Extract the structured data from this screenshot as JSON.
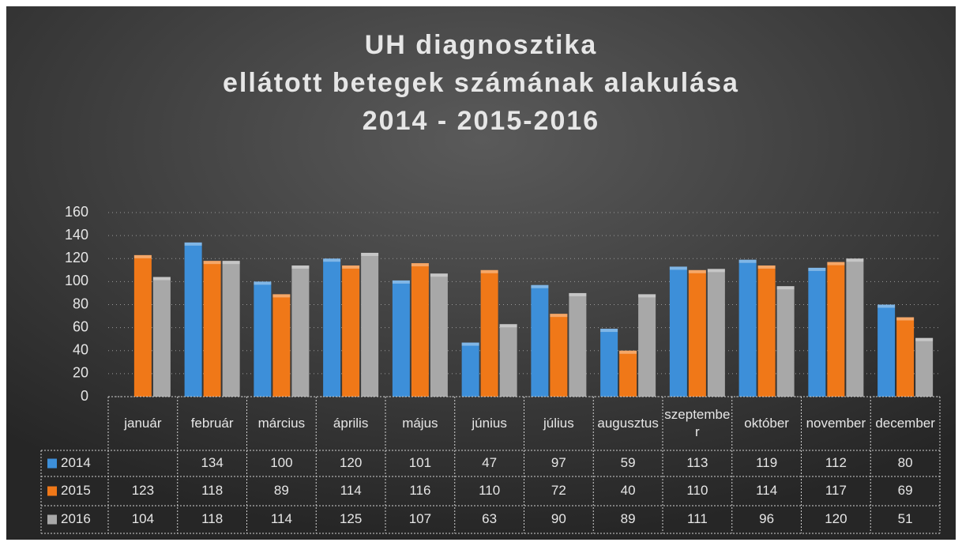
{
  "chart_data": {
    "type": "bar",
    "title": [
      "UH diagnosztika",
      "ellátott betegek számának alakulása",
      "2014 - 2015-2016"
    ],
    "categories": [
      "január",
      "február",
      "március",
      "április",
      "május",
      "június",
      "július",
      "augusztus",
      "szeptember",
      "október",
      "november",
      "december"
    ],
    "series": [
      {
        "name": "2014",
        "color": "#3d8fd9",
        "values": [
          null,
          134,
          100,
          120,
          101,
          47,
          97,
          59,
          113,
          119,
          112,
          80
        ]
      },
      {
        "name": "2015",
        "color": "#f07818",
        "values": [
          123,
          118,
          89,
          114,
          116,
          110,
          72,
          40,
          110,
          114,
          117,
          69
        ]
      },
      {
        "name": "2016",
        "color": "#a8a8a8",
        "values": [
          104,
          118,
          114,
          125,
          107,
          63,
          90,
          89,
          111,
          96,
          120,
          51
        ]
      }
    ],
    "ylim": [
      0,
      160
    ],
    "yticks": [
      0,
      20,
      40,
      60,
      80,
      100,
      120,
      140,
      160
    ],
    "grid": true
  }
}
